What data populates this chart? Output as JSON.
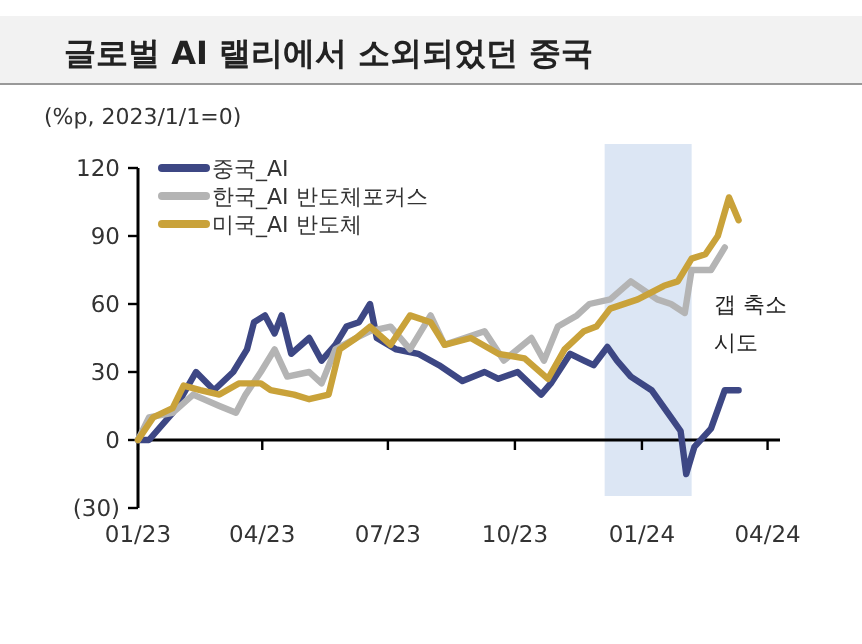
{
  "chart_data": {
    "type": "line",
    "title": "글로벌 AI 랠리에서 소외되었던 중국",
    "ylabel": "(%p, 2023/1/1=0)",
    "xlim": [
      "2023-01-01",
      "2024-04-10"
    ],
    "xticks": [
      {
        "value": "2023-01-01",
        "label": "01/23"
      },
      {
        "value": "2023-04-01",
        "label": "04/23"
      },
      {
        "value": "2023-07-01",
        "label": "07/23"
      },
      {
        "value": "2023-10-01",
        "label": "10/23"
      },
      {
        "value": "2024-01-01",
        "label": "01/24"
      },
      {
        "value": "2024-04-01",
        "label": "04/24"
      }
    ],
    "ylim": [
      -30,
      120
    ],
    "yticks": [
      120,
      90,
      60,
      30,
      0,
      {
        "value": -30,
        "label": "(30)"
      }
    ],
    "legend": "top left",
    "marker": "none",
    "line_style": "solid",
    "bands": [
      {
        "axis": "x",
        "from": "2023-12-05",
        "to": "2024-02-06",
        "color": "#dce6f4"
      }
    ],
    "annotations": [
      "갭 축소 시도"
    ],
    "series": [
      {
        "name": "중국_AI",
        "color": "#3d4784",
        "x": [
          "2023-01-01",
          "2023-01-09",
          "2023-01-26",
          "2023-02-12",
          "2023-02-25",
          "2023-03-11",
          "2023-03-21",
          "2023-03-26",
          "2023-04-03",
          "2023-04-10",
          "2023-04-15",
          "2023-04-22",
          "2023-05-05",
          "2023-05-14",
          "2023-05-24",
          "2023-06-01",
          "2023-06-10",
          "2023-06-18",
          "2023-06-23",
          "2023-07-07",
          "2023-07-23",
          "2023-08-07",
          "2023-08-24",
          "2023-09-09",
          "2023-09-19",
          "2023-10-03",
          "2023-10-20",
          "2023-10-27",
          "2023-11-10",
          "2023-11-20",
          "2023-11-27",
          "2023-12-07",
          "2023-12-14",
          "2023-12-24",
          "2024-01-08",
          "2024-01-22",
          "2024-01-29",
          "2024-02-02",
          "2024-02-08",
          "2024-02-20",
          "2024-03-01",
          "2024-03-11"
        ],
        "values": [
          0,
          0,
          12,
          30,
          22,
          30,
          40,
          52,
          55,
          47,
          55,
          38,
          45,
          35,
          42,
          50,
          52,
          60,
          45,
          40,
          38,
          33,
          26,
          30,
          27,
          30,
          20,
          25,
          38,
          35,
          33,
          41,
          35,
          28,
          22,
          10,
          4,
          -15,
          -3,
          5,
          22,
          22
        ]
      },
      {
        "name": "한국_AI 반도체포커스",
        "color": "#b4b4b4",
        "x": [
          "2023-01-01",
          "2023-01-09",
          "2023-01-26",
          "2023-02-10",
          "2023-03-01",
          "2023-03-13",
          "2023-03-20",
          "2023-03-31",
          "2023-04-10",
          "2023-04-19",
          "2023-05-05",
          "2023-05-14",
          "2023-05-24",
          "2023-06-08",
          "2023-06-18",
          "2023-07-03",
          "2023-07-17",
          "2023-08-01",
          "2023-08-11",
          "2023-09-09",
          "2023-09-23",
          "2023-10-13",
          "2023-10-22",
          "2023-11-01",
          "2023-11-15",
          "2023-11-24",
          "2023-12-09",
          "2023-12-24",
          "2024-01-12",
          "2024-01-22",
          "2024-02-01",
          "2024-02-06",
          "2024-02-20",
          "2024-03-01"
        ],
        "values": [
          0,
          10,
          12,
          20,
          15,
          12,
          20,
          30,
          40,
          28,
          30,
          25,
          40,
          45,
          48,
          50,
          40,
          55,
          42,
          48,
          35,
          45,
          35,
          50,
          55,
          60,
          62,
          70,
          62,
          60,
          56,
          75,
          75,
          85
        ]
      },
      {
        "name": "미국_AI 반도체",
        "color": "#c9a23a",
        "x": [
          "2023-01-01",
          "2023-01-12",
          "2023-01-26",
          "2023-02-03",
          "2023-02-15",
          "2023-03-01",
          "2023-03-15",
          "2023-03-31",
          "2023-04-07",
          "2023-04-24",
          "2023-05-05",
          "2023-05-19",
          "2023-05-27",
          "2023-06-08",
          "2023-06-18",
          "2023-07-03",
          "2023-07-17",
          "2023-08-01",
          "2023-08-11",
          "2023-08-30",
          "2023-09-19",
          "2023-10-08",
          "2023-10-25",
          "2023-11-06",
          "2023-11-20",
          "2023-11-29",
          "2023-12-09",
          "2023-12-29",
          "2024-01-17",
          "2024-01-27",
          "2024-02-06",
          "2024-02-16",
          "2024-02-25",
          "2024-03-04",
          "2024-03-11"
        ],
        "values": [
          0,
          10,
          14,
          24,
          22,
          20,
          25,
          25,
          22,
          20,
          18,
          20,
          40,
          45,
          50,
          42,
          55,
          52,
          42,
          45,
          38,
          36,
          27,
          40,
          48,
          50,
          58,
          62,
          68,
          70,
          80,
          82,
          90,
          107,
          97
        ]
      }
    ]
  }
}
